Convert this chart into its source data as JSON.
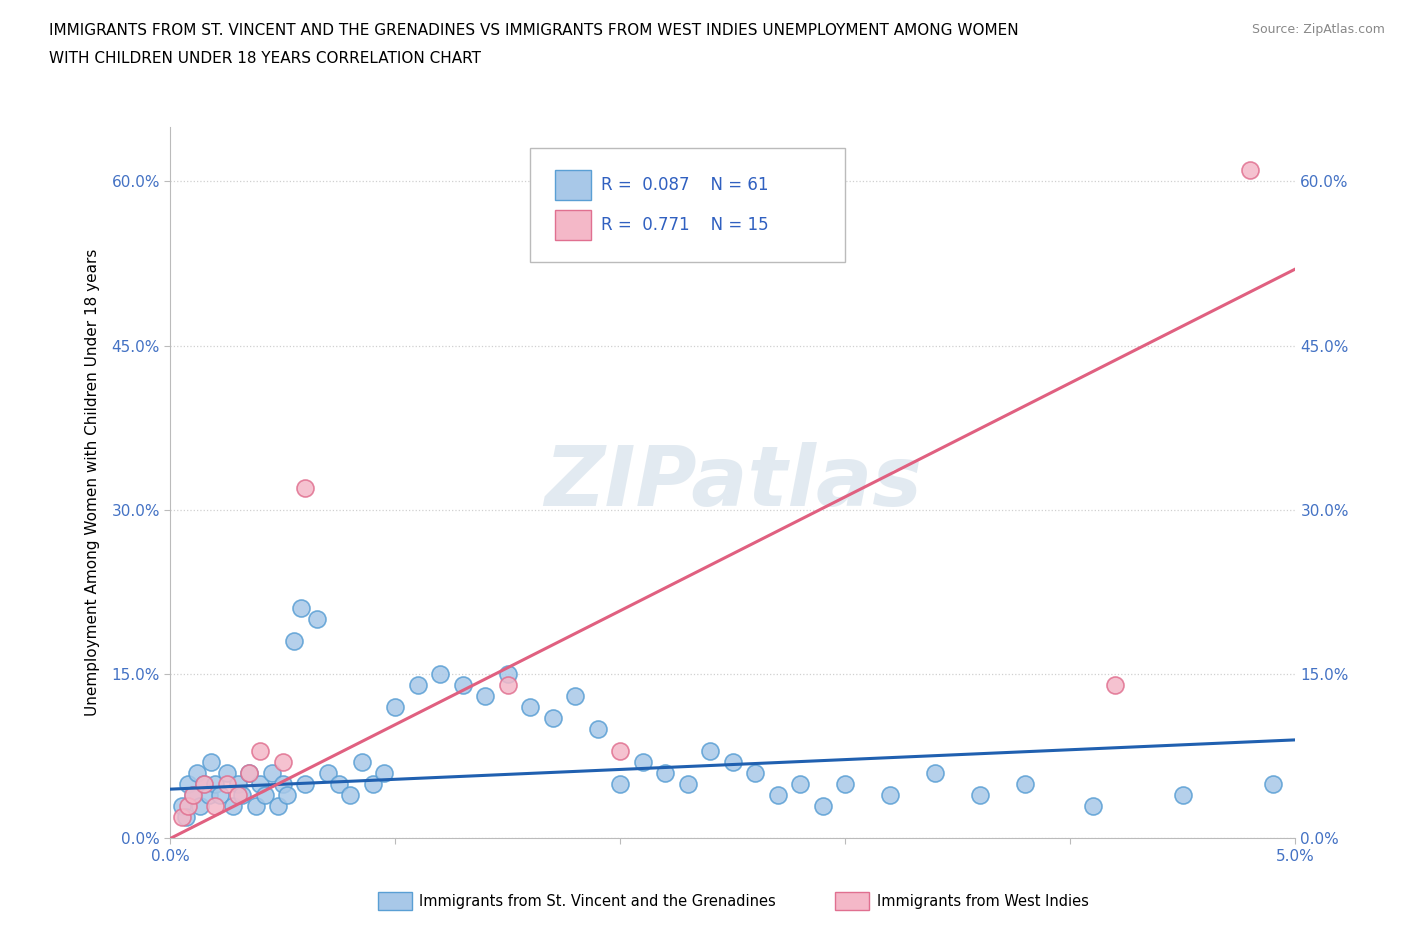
{
  "title_line1": "IMMIGRANTS FROM ST. VINCENT AND THE GRENADINES VS IMMIGRANTS FROM WEST INDIES UNEMPLOYMENT AMONG WOMEN",
  "title_line2": "WITH CHILDREN UNDER 18 YEARS CORRELATION CHART",
  "source": "Source: ZipAtlas.com",
  "ylabel": "Unemployment Among Women with Children Under 18 years",
  "xlim": [
    0.0,
    5.0
  ],
  "ylim": [
    0.0,
    65.0
  ],
  "xticks": [
    0.0,
    1.0,
    2.0,
    3.0,
    4.0,
    5.0
  ],
  "xticklabels": [
    "0.0%",
    "",
    "",
    "",
    "",
    "5.0%"
  ],
  "yticks": [
    0.0,
    15.0,
    30.0,
    45.0,
    60.0
  ],
  "yticklabels": [
    "0.0%",
    "15.0%",
    "30.0%",
    "45.0%",
    "60.0%"
  ],
  "blue_color": "#a8c8e8",
  "blue_edge_color": "#5a9fd4",
  "pink_color": "#f4b8c8",
  "pink_edge_color": "#e07090",
  "blue_line_color": "#2060b0",
  "pink_line_color": "#e06080",
  "blue_label": "Immigrants from St. Vincent and the Grenadines",
  "pink_label": "Immigrants from West Indies",
  "R_blue": 0.087,
  "N_blue": 61,
  "R_pink": 0.771,
  "N_pink": 15,
  "legend_color": "#3060c0",
  "watermark_text": "ZIPatlas",
  "blue_scatter_x": [
    0.05,
    0.07,
    0.08,
    0.1,
    0.12,
    0.13,
    0.15,
    0.17,
    0.18,
    0.2,
    0.22,
    0.25,
    0.28,
    0.3,
    0.32,
    0.35,
    0.38,
    0.4,
    0.42,
    0.45,
    0.48,
    0.5,
    0.52,
    0.55,
    0.58,
    0.6,
    0.65,
    0.7,
    0.75,
    0.8,
    0.85,
    0.9,
    0.95,
    1.0,
    1.1,
    1.2,
    1.3,
    1.4,
    1.5,
    1.6,
    1.7,
    1.8,
    1.9,
    2.0,
    2.1,
    2.2,
    2.3,
    2.4,
    2.5,
    2.6,
    2.7,
    2.8,
    2.9,
    3.0,
    3.2,
    3.4,
    3.6,
    3.8,
    4.1,
    4.5,
    4.9
  ],
  "blue_scatter_y": [
    3.0,
    2.0,
    5.0,
    4.0,
    6.0,
    3.0,
    5.0,
    4.0,
    7.0,
    5.0,
    4.0,
    6.0,
    3.0,
    5.0,
    4.0,
    6.0,
    3.0,
    5.0,
    4.0,
    6.0,
    3.0,
    5.0,
    4.0,
    18.0,
    21.0,
    5.0,
    20.0,
    6.0,
    5.0,
    4.0,
    7.0,
    5.0,
    6.0,
    12.0,
    14.0,
    15.0,
    14.0,
    13.0,
    15.0,
    12.0,
    11.0,
    13.0,
    10.0,
    5.0,
    7.0,
    6.0,
    5.0,
    8.0,
    7.0,
    6.0,
    4.0,
    5.0,
    3.0,
    5.0,
    4.0,
    6.0,
    4.0,
    5.0,
    3.0,
    4.0,
    5.0
  ],
  "pink_scatter_x": [
    0.05,
    0.08,
    0.1,
    0.15,
    0.2,
    0.25,
    0.3,
    0.35,
    0.4,
    0.5,
    0.6,
    1.5,
    2.0,
    4.2,
    4.8
  ],
  "pink_scatter_y": [
    2.0,
    3.0,
    4.0,
    5.0,
    3.0,
    5.0,
    4.0,
    6.0,
    8.0,
    7.0,
    32.0,
    14.0,
    8.0,
    14.0,
    61.0
  ],
  "blue_trend_x": [
    0.0,
    5.0
  ],
  "blue_trend_y": [
    4.5,
    9.0
  ],
  "pink_trend_x": [
    0.0,
    5.0
  ],
  "pink_trend_y": [
    0.0,
    52.0
  ],
  "grid_color": "#d0d0d0",
  "bg_color": "#ffffff",
  "tick_color": "#4472c4"
}
